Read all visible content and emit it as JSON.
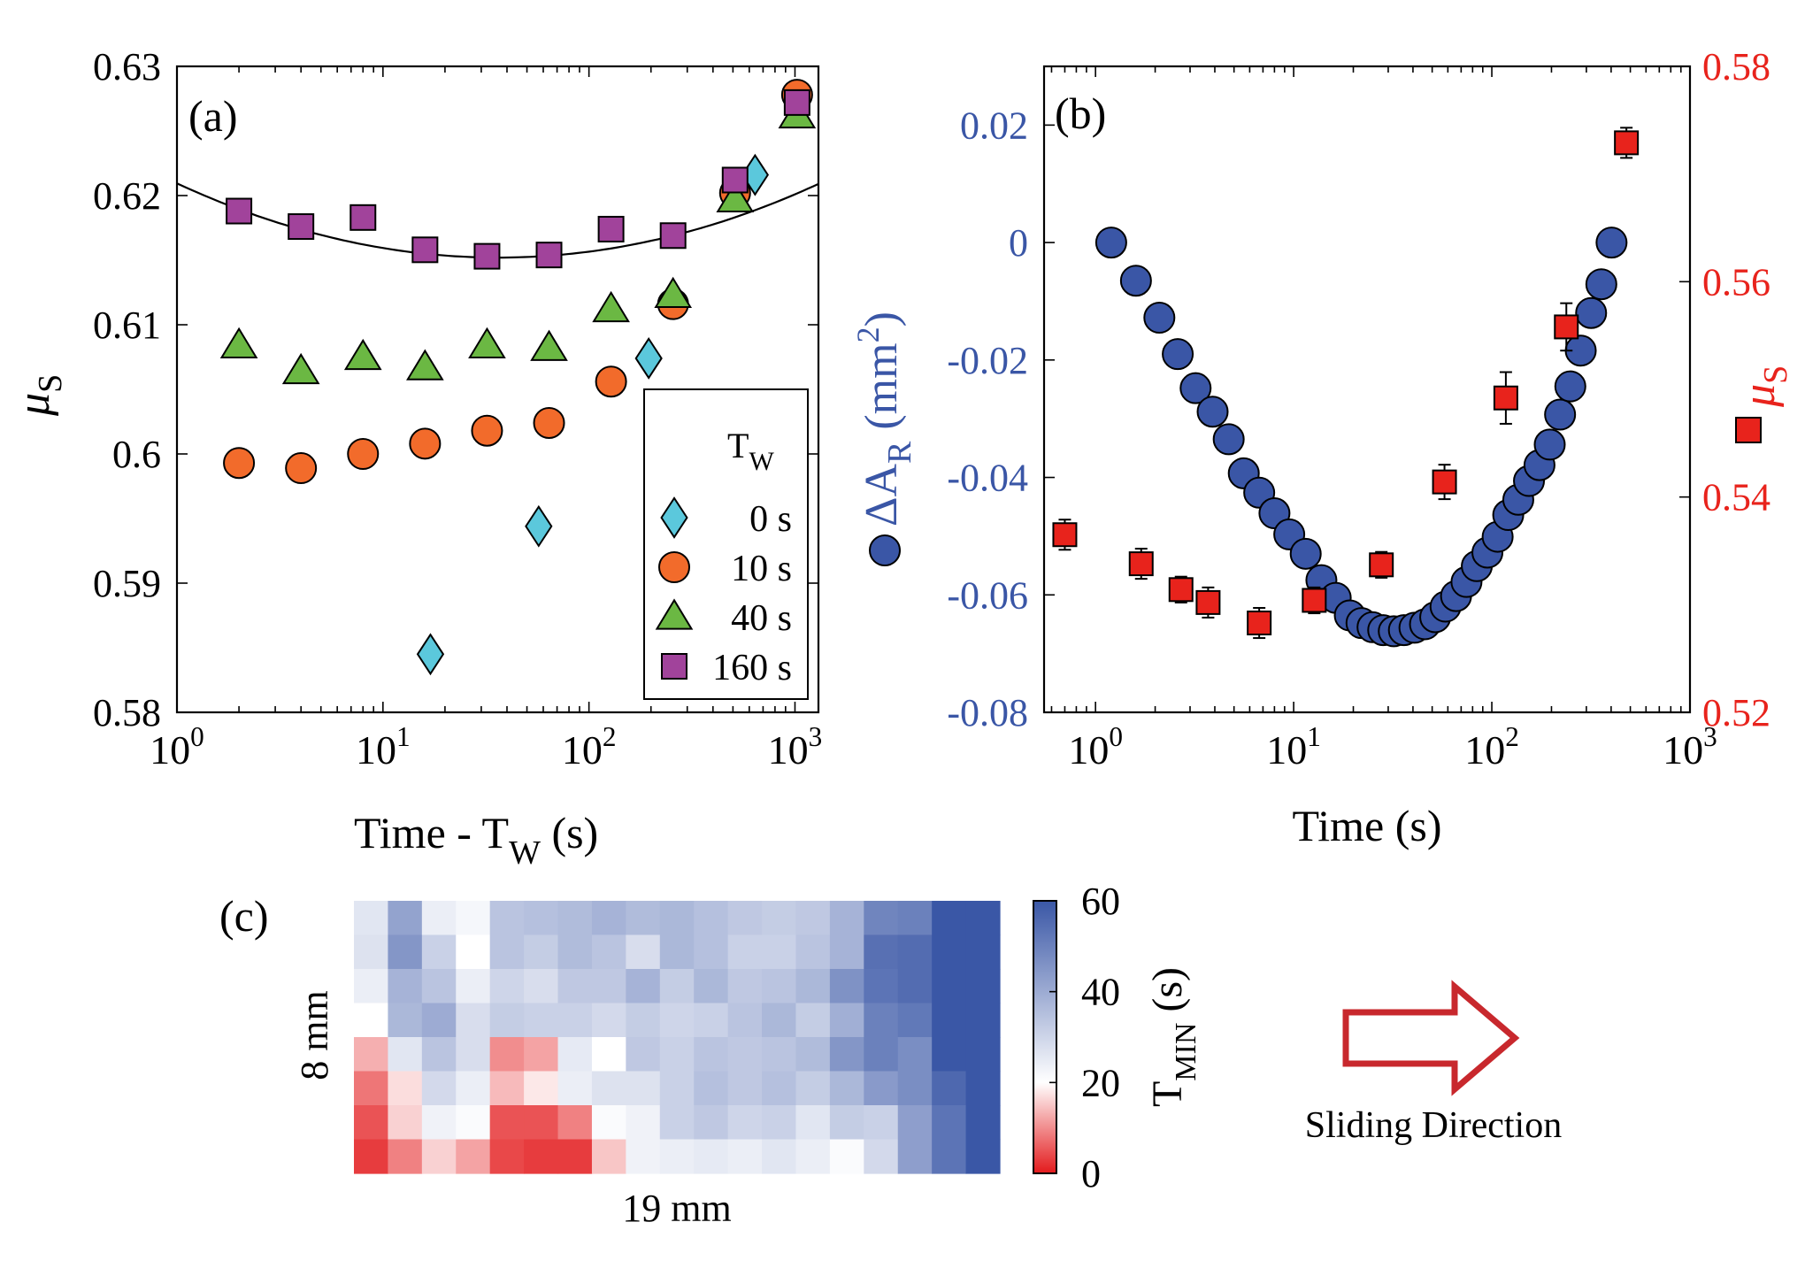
{
  "chart_data": [
    {
      "panel": "a",
      "type": "scatter",
      "panel_label": "(a)",
      "xscale": "log",
      "xlim": [
        1,
        1300
      ],
      "ylim": [
        0.58,
        0.63
      ],
      "xlabel_main": "Time - T",
      "xlabel_sub": "W",
      "xlabel_end": " (s)",
      "ylabel_main": "μ",
      "ylabel_sub": "S",
      "xticks": [
        {
          "value": 1,
          "base": "10",
          "exp": "0"
        },
        {
          "value": 10,
          "base": "10",
          "exp": "1"
        },
        {
          "value": 100,
          "base": "10",
          "exp": "2"
        },
        {
          "value": 1000,
          "base": "10",
          "exp": "3"
        }
      ],
      "yticks": [
        {
          "value": 0.58,
          "label": "0.58"
        },
        {
          "value": 0.59,
          "label": "0.59"
        },
        {
          "value": 0.6,
          "label": "0.6"
        },
        {
          "value": 0.61,
          "label": "0.61"
        },
        {
          "value": 0.62,
          "label": "0.62"
        },
        {
          "value": 0.63,
          "label": "0.63"
        }
      ],
      "legend": {
        "title_main": "T",
        "title_sub": "W",
        "placement": "bottom-right"
      },
      "series": [
        {
          "name": "0 s",
          "marker": "diamond",
          "color": "#5bc8dc",
          "x": [
            17,
            57,
            195,
            640
          ],
          "y": [
            0.5845,
            0.5944,
            0.6074,
            0.6216
          ]
        },
        {
          "name": "10 s",
          "marker": "circle",
          "color": "#f26b2b",
          "x": [
            2,
            4,
            8,
            16,
            32,
            64,
            128,
            256,
            512,
            1024
          ],
          "y": [
            0.5993,
            0.5989,
            0.6,
            0.6008,
            0.6018,
            0.6024,
            0.6056,
            0.6116,
            0.6202,
            0.6278
          ]
        },
        {
          "name": "40 s",
          "marker": "triangle",
          "color": "#6bb843",
          "x": [
            2,
            4,
            8,
            16,
            32,
            64,
            128,
            256,
            512,
            1024
          ],
          "y": [
            0.6084,
            0.6064,
            0.6075,
            0.6067,
            0.6084,
            0.6082,
            0.6112,
            0.6123,
            0.6197,
            0.6262
          ]
        },
        {
          "name": "160 s",
          "marker": "square",
          "color": "#a1439b",
          "x": [
            2,
            4,
            8,
            16,
            32,
            64,
            128,
            256,
            512,
            1024
          ],
          "y": [
            0.6188,
            0.6176,
            0.6183,
            0.6158,
            0.6153,
            0.6154,
            0.6174,
            0.6169,
            0.6212,
            0.6272
          ]
        }
      ],
      "fit_curve": {
        "a": 0.6152,
        "b": 0.00236,
        "center_log10": 1.56
      }
    },
    {
      "panel": "b",
      "type": "scatter",
      "panel_label": "(b)",
      "xscale": "log",
      "xlim": [
        0.55,
        1000
      ],
      "ylim_left": [
        -0.08,
        0.03
      ],
      "ylim_right": [
        0.52,
        0.58
      ],
      "xlabel": "Time (s)",
      "ylabel_left_main": "ΔA",
      "ylabel_left_sub": "R",
      "ylabel_left_end": " (mm",
      "ylabel_left_sup": "2",
      "ylabel_left_close": ")",
      "ylabel_right_main": "μ",
      "ylabel_right_sub": "S",
      "left_color": "#3a56a6",
      "right_color": "#e8231c",
      "xticks": [
        {
          "value": 1,
          "base": "10",
          "exp": "0"
        },
        {
          "value": 10,
          "base": "10",
          "exp": "1"
        },
        {
          "value": 100,
          "base": "10",
          "exp": "2"
        },
        {
          "value": 1000,
          "base": "10",
          "exp": "3"
        }
      ],
      "yticks_left": [
        {
          "value": 0.02,
          "label": "0.02"
        },
        {
          "value": 0.0,
          "label": "0"
        },
        {
          "value": -0.02,
          "label": "-0.02"
        },
        {
          "value": -0.04,
          "label": "-0.04"
        },
        {
          "value": -0.06,
          "label": "-0.06"
        },
        {
          "value": -0.08,
          "label": "-0.08"
        }
      ],
      "yticks_right": [
        {
          "value": 0.58,
          "label": "0.58"
        },
        {
          "value": 0.56,
          "label": "0.56"
        },
        {
          "value": 0.54,
          "label": "0.54"
        },
        {
          "value": 0.52,
          "label": "0.52"
        }
      ],
      "series": [
        {
          "name": "ΔA_R",
          "axis": "left",
          "marker": "circle",
          "color": "#3a56a6",
          "x": [
            1.2,
            1.6,
            2.1,
            2.6,
            3.2,
            3.9,
            4.7,
            5.6,
            6.7,
            8.0,
            9.5,
            11.5,
            13.8,
            16.3,
            19.2,
            22.0,
            25.0,
            28.3,
            32.0,
            36.0,
            40.7,
            46.0,
            51.8,
            58.4,
            66.0,
            74.5,
            84.0,
            95.0,
            107.0,
            121.0,
            136.0,
            154.0,
            174.0,
            196.0,
            221.0,
            249.0,
            281.0,
            317.0,
            357.0,
            402.0
          ],
          "y": [
            0.0,
            -0.0065,
            -0.0128,
            -0.019,
            -0.0248,
            -0.0288,
            -0.0335,
            -0.0393,
            -0.0426,
            -0.0461,
            -0.0497,
            -0.053,
            -0.0575,
            -0.0605,
            -0.0635,
            -0.0648,
            -0.0655,
            -0.066,
            -0.0662,
            -0.066,
            -0.0656,
            -0.065,
            -0.0638,
            -0.062,
            -0.0602,
            -0.0578,
            -0.0551,
            -0.0528,
            -0.0501,
            -0.0464,
            -0.0438,
            -0.0406,
            -0.0379,
            -0.0344,
            -0.0293,
            -0.0245,
            -0.0184,
            -0.012,
            -0.0071,
            0.0
          ]
        },
        {
          "name": "μ_S",
          "axis": "right",
          "marker": "square",
          "color": "#e8231c",
          "x": [
            0.7,
            1.7,
            2.7,
            3.7,
            6.7,
            12.7,
            27.7,
            57.7,
            117.7,
            237.7,
            477.7
          ],
          "y": [
            0.5365,
            0.5338,
            0.5314,
            0.5302,
            0.5283,
            0.5304,
            0.5337,
            0.5414,
            0.5492,
            0.5558,
            0.5729
          ],
          "err": [
            0.0014,
            0.0014,
            0.0012,
            0.0014,
            0.0014,
            0.0012,
            0.0012,
            0.0016,
            0.0024,
            0.0022,
            0.0014
          ]
        }
      ]
    },
    {
      "panel": "c",
      "type": "heatmap",
      "panel_label": "(c)",
      "xlabel": "19 mm",
      "ylabel": "8 mm",
      "colorbar_label_main": "T",
      "colorbar_label_sub": "MIN",
      "colorbar_label_end": " (s)",
      "colorbar_range": [
        0,
        60
      ],
      "colorbar_mid": 20,
      "colorbar_ticks": [
        {
          "value": 0,
          "label": "0"
        },
        {
          "value": 20,
          "label": "20"
        },
        {
          "value": 40,
          "label": "40"
        },
        {
          "value": 60,
          "label": "60"
        }
      ],
      "colormap": {
        "low": "#e31a1c",
        "mid": "#ffffff",
        "high": "#3a57a6"
      },
      "values": [
        [
          26,
          42,
          24,
          22,
          34,
          35,
          36,
          38,
          36,
          37,
          35,
          33,
          32,
          33,
          38,
          49,
          50,
          60,
          60
        ],
        [
          27,
          45,
          31,
          20,
          34,
          32,
          36,
          34,
          28,
          37,
          35,
          31,
          31,
          34,
          38,
          54,
          55,
          60,
          60
        ],
        [
          24,
          38,
          34,
          24,
          30,
          28,
          33,
          33,
          38,
          32,
          37,
          33,
          34,
          37,
          46,
          53,
          55,
          60,
          60
        ],
        [
          20,
          37,
          40,
          28,
          32,
          31,
          31,
          29,
          32,
          30,
          31,
          34,
          37,
          32,
          39,
          50,
          52,
          60,
          60
        ],
        [
          13,
          26,
          34,
          28,
          10,
          12,
          25,
          20,
          33,
          31,
          34,
          33,
          34,
          36,
          45,
          50,
          47,
          60,
          60
        ],
        [
          8,
          17,
          29,
          24,
          14,
          18,
          24,
          27,
          27,
          31,
          35,
          33,
          35,
          32,
          37,
          44,
          47,
          56,
          60
        ],
        [
          5,
          16,
          23,
          21,
          5,
          5,
          9,
          21,
          23,
          31,
          33,
          30,
          31,
          26,
          32,
          31,
          43,
          53,
          60
        ],
        [
          3,
          9,
          16,
          12,
          4,
          3,
          3,
          15,
          23,
          24,
          25,
          24,
          26,
          24,
          21,
          29,
          43,
          53,
          60
        ]
      ]
    }
  ],
  "annotation": {
    "text": "Sliding Direction",
    "arrow_color": "#c8282d"
  }
}
